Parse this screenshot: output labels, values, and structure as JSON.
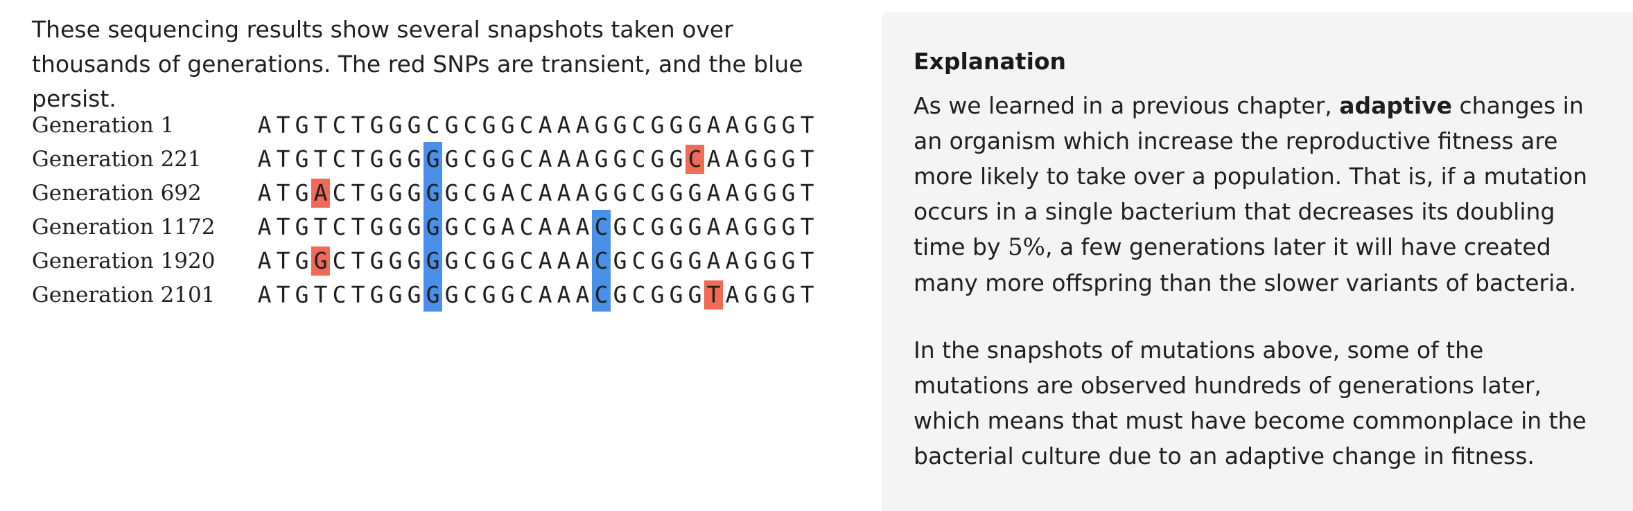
{
  "intro": {
    "text": "These sequencing results show several snapshots taken over thousands of generations. The red SNPs are transient, and the blue persist."
  },
  "colors": {
    "persist": "#4a8fe8",
    "transient": "#f06a58",
    "panel_bg": "#f4f4f4"
  },
  "sequences": [
    {
      "label": "Generation 1",
      "bases": "ATGTCTGGGCGCGGCAAAGGCGGGAAGGGT",
      "persist": [],
      "transient": []
    },
    {
      "label": "Generation 221",
      "bases": "ATGTCTGGGGGCGGCAAAGGCGGCAAGGGT",
      "persist": [
        9
      ],
      "transient": [
        23
      ]
    },
    {
      "label": "Generation 692",
      "bases": "ATGACTGGGGGCGACAAAGGCGGGAAGGGT",
      "persist": [
        9
      ],
      "transient": [
        3
      ]
    },
    {
      "label": "Generation 1172",
      "bases": "ATGTCTGGGGGCGACAAACGCGGGAAGGGT",
      "persist": [
        9,
        18
      ],
      "transient": []
    },
    {
      "label": "Generation 1920",
      "bases": "ATGGCTGGGGGCGGCAAACGCGGGAAGGGT",
      "persist": [
        9,
        18
      ],
      "transient": [
        3
      ]
    },
    {
      "label": "Generation 2101",
      "bases": "ATGTCTGGGGGCGGCAAACGCGGGTAGGGT",
      "persist": [
        9,
        18
      ],
      "transient": [
        24
      ]
    }
  ],
  "explanation": {
    "title": "Explanation",
    "p1_before": "As we learned in a previous chapter, ",
    "p1_bold": "adaptive",
    "p1_mid": " changes in an organism which increase the reproductive fitness are more likely to take over a population. That is, if a mutation occurs in a single bacterium that decreases its doubling time by ",
    "p1_math": "5%",
    "p1_after": ", a few generations later it will have created many more offspring than the slower variants of bacteria.",
    "p2": "In the snapshots of mutations above, some of the mutations are observed hundreds of generations later, which means that must have become commonplace in the bacterial culture due to an adaptive change in fitness."
  }
}
